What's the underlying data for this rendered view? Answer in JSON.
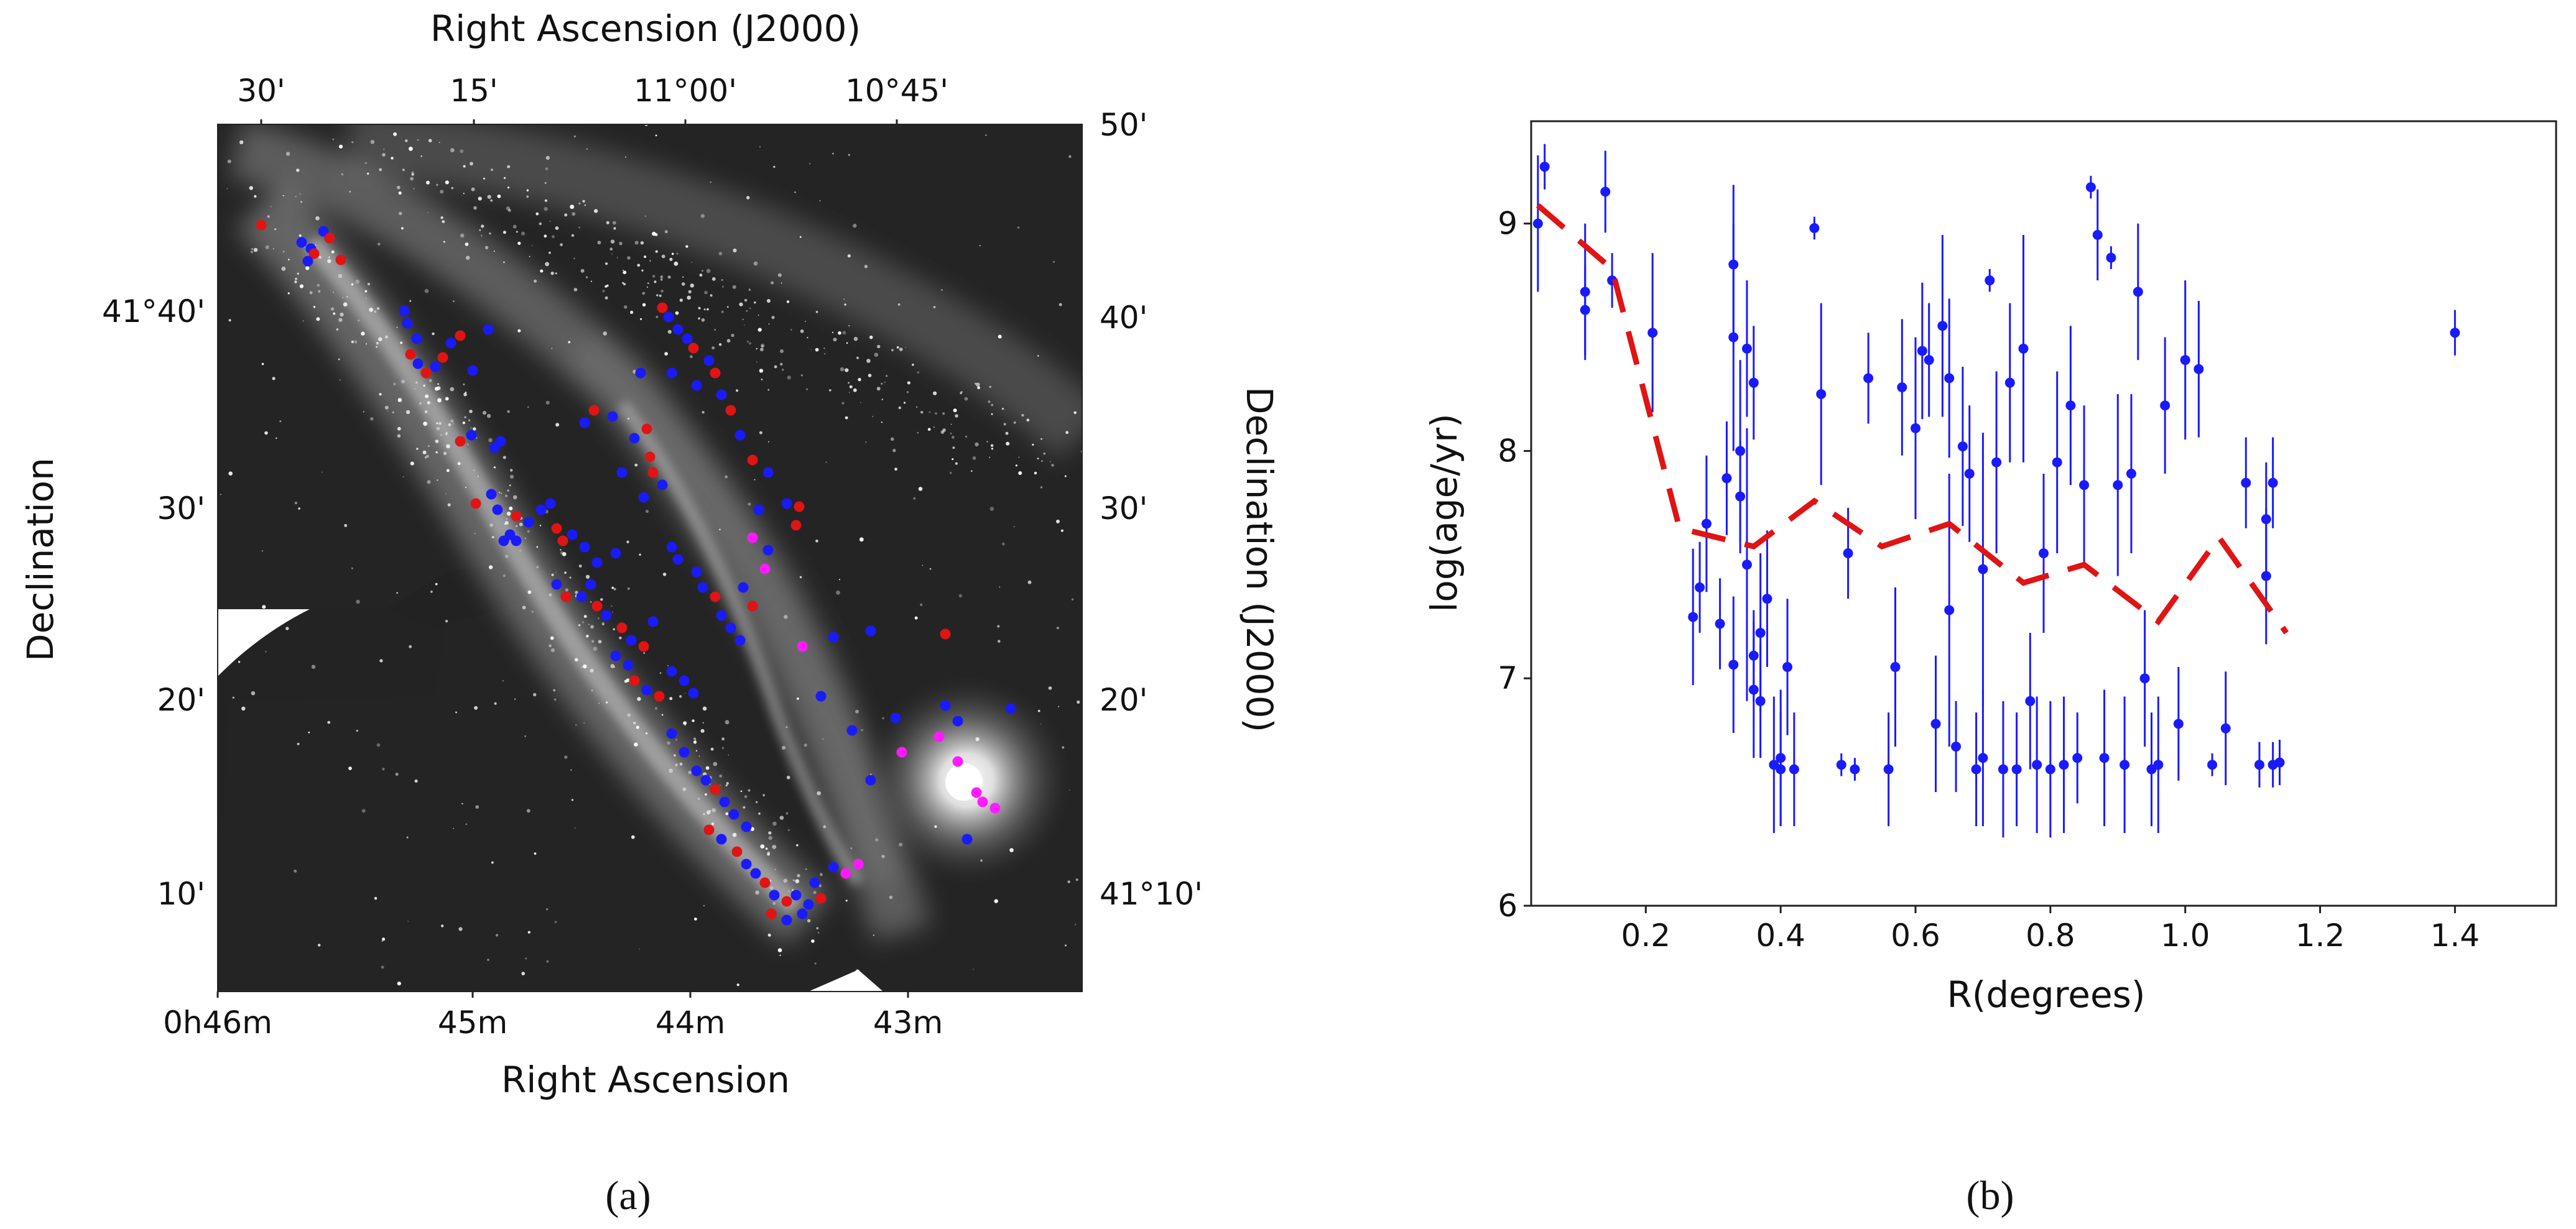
{
  "panel_a": {
    "label": "(a)",
    "top_axis_title": "Right Ascension (J2000)",
    "top_ticks": [
      "30'",
      "15'",
      "11°00'",
      "10°45'"
    ],
    "bottom_axis_title": "Right Ascension",
    "bottom_ticks": [
      "0h46m",
      "45m",
      "44m",
      "43m"
    ],
    "left_axis_title": "Declination",
    "left_ticks": [
      "41°40'",
      "30'",
      "20'",
      "10'"
    ],
    "right_axis_title": "Declination (J2000)",
    "right_ticks": [
      "50'",
      "40'",
      "30'",
      "20'",
      "41°10'"
    ],
    "marker_colors": [
      "#1a1aff",
      "#e01414",
      "#ff1aff"
    ]
  },
  "chart_data": {
    "type": "scatter",
    "label": "(b)",
    "xlabel": "R(degrees)",
    "ylabel": "log(age/yr)",
    "xlim": [
      0.03,
      1.55
    ],
    "ylim": [
      6,
      9.45
    ],
    "xticks": [
      "0.2",
      "0.4",
      "0.6",
      "0.8",
      "1.0",
      "1.2",
      "1.4"
    ],
    "yticks": [
      "6",
      "7",
      "8",
      "9"
    ],
    "grid": false,
    "series": [
      {
        "kind": "points_with_error_bars",
        "color": "#1a1aff",
        "points": [
          [
            0.04,
            9.0,
            0.3
          ],
          [
            0.05,
            9.25,
            0.1
          ],
          [
            0.11,
            8.7,
            0.3
          ],
          [
            0.11,
            8.62,
            0.2
          ],
          [
            0.14,
            9.14,
            0.18
          ],
          [
            0.15,
            8.75,
            0.12
          ],
          [
            0.21,
            8.52,
            0.35
          ],
          [
            0.27,
            7.27,
            0.3
          ],
          [
            0.28,
            7.4,
            0.2
          ],
          [
            0.29,
            7.68,
            0.3
          ],
          [
            0.31,
            7.24,
            0.2
          ],
          [
            0.32,
            7.88,
            0.25
          ],
          [
            0.33,
            7.06,
            0.3
          ],
          [
            0.33,
            8.5,
            0.5
          ],
          [
            0.33,
            8.82,
            0.35
          ],
          [
            0.34,
            8.0,
            0.4
          ],
          [
            0.34,
            7.8,
            0.25
          ],
          [
            0.35,
            7.5,
            0.6
          ],
          [
            0.35,
            8.45,
            0.3
          ],
          [
            0.36,
            8.3,
            0.25
          ],
          [
            0.36,
            7.1,
            0.2
          ],
          [
            0.36,
            6.95,
            0.3
          ],
          [
            0.37,
            7.2,
            0.35
          ],
          [
            0.37,
            6.9,
            0.25
          ],
          [
            0.38,
            7.35,
            0.3
          ],
          [
            0.39,
            6.62,
            0.3
          ],
          [
            0.4,
            6.6,
            0.25
          ],
          [
            0.4,
            6.65,
            0.3
          ],
          [
            0.41,
            7.05,
            0.3
          ],
          [
            0.42,
            6.6,
            0.25
          ],
          [
            0.45,
            8.98,
            0.05
          ],
          [
            0.46,
            8.25,
            0.4
          ],
          [
            0.49,
            6.62,
            0.05
          ],
          [
            0.5,
            7.55,
            0.2
          ],
          [
            0.51,
            6.6,
            0.05
          ],
          [
            0.53,
            8.32,
            0.2
          ],
          [
            0.56,
            6.6,
            0.25
          ],
          [
            0.57,
            7.05,
            0.35
          ],
          [
            0.58,
            8.28,
            0.3
          ],
          [
            0.6,
            8.1,
            0.4
          ],
          [
            0.61,
            8.44,
            0.3
          ],
          [
            0.62,
            8.4,
            0.25
          ],
          [
            0.63,
            6.8,
            0.3
          ],
          [
            0.64,
            8.55,
            0.4
          ],
          [
            0.65,
            8.32,
            0.35
          ],
          [
            0.65,
            7.3,
            0.6
          ],
          [
            0.66,
            6.7,
            0.2
          ],
          [
            0.67,
            8.02,
            0.35
          ],
          [
            0.68,
            7.9,
            0.3
          ],
          [
            0.69,
            6.6,
            0.25
          ],
          [
            0.7,
            7.48,
            0.6
          ],
          [
            0.7,
            6.65,
            0.3
          ],
          [
            0.71,
            8.75,
            0.05
          ],
          [
            0.72,
            7.95,
            0.4
          ],
          [
            0.73,
            6.6,
            0.3
          ],
          [
            0.74,
            8.3,
            0.35
          ],
          [
            0.75,
            6.6,
            0.25
          ],
          [
            0.76,
            8.45,
            0.5
          ],
          [
            0.77,
            6.9,
            0.3
          ],
          [
            0.78,
            6.62,
            0.3
          ],
          [
            0.79,
            7.55,
            0.35
          ],
          [
            0.8,
            6.6,
            0.3
          ],
          [
            0.81,
            7.95,
            0.4
          ],
          [
            0.82,
            6.62,
            0.3
          ],
          [
            0.83,
            8.2,
            0.35
          ],
          [
            0.84,
            6.65,
            0.2
          ],
          [
            0.85,
            7.85,
            0.35
          ],
          [
            0.86,
            9.16,
            0.05
          ],
          [
            0.87,
            8.95,
            0.2
          ],
          [
            0.88,
            6.65,
            0.3
          ],
          [
            0.89,
            8.85,
            0.05
          ],
          [
            0.9,
            7.85,
            0.4
          ],
          [
            0.91,
            6.62,
            0.3
          ],
          [
            0.92,
            7.9,
            0.35
          ],
          [
            0.93,
            8.7,
            0.3
          ],
          [
            0.94,
            7.0,
            0.3
          ],
          [
            0.95,
            6.6,
            0.25
          ],
          [
            0.96,
            6.62,
            0.3
          ],
          [
            0.97,
            8.2,
            0.3
          ],
          [
            0.99,
            6.8,
            0.25
          ],
          [
            1.0,
            8.4,
            0.35
          ],
          [
            1.02,
            8.36,
            0.3
          ],
          [
            1.04,
            6.62,
            0.05
          ],
          [
            1.06,
            6.78,
            0.25
          ],
          [
            1.09,
            7.86,
            0.2
          ],
          [
            1.11,
            6.62,
            0.1
          ],
          [
            1.12,
            7.7,
            0.25
          ],
          [
            1.12,
            7.45,
            0.3
          ],
          [
            1.13,
            7.86,
            0.2
          ],
          [
            1.13,
            6.62,
            0.1
          ],
          [
            1.14,
            6.63,
            0.1
          ],
          [
            1.4,
            8.52,
            0.1
          ]
        ]
      },
      {
        "kind": "dashed_line",
        "color": "#e01414",
        "points": [
          [
            0.04,
            9.08
          ],
          [
            0.15,
            8.8
          ],
          [
            0.25,
            7.66
          ],
          [
            0.36,
            7.58
          ],
          [
            0.45,
            7.78
          ],
          [
            0.55,
            7.58
          ],
          [
            0.65,
            7.68
          ],
          [
            0.76,
            7.42
          ],
          [
            0.85,
            7.5
          ],
          [
            0.96,
            7.25
          ],
          [
            1.05,
            7.62
          ],
          [
            1.15,
            7.2
          ]
        ]
      }
    ]
  }
}
